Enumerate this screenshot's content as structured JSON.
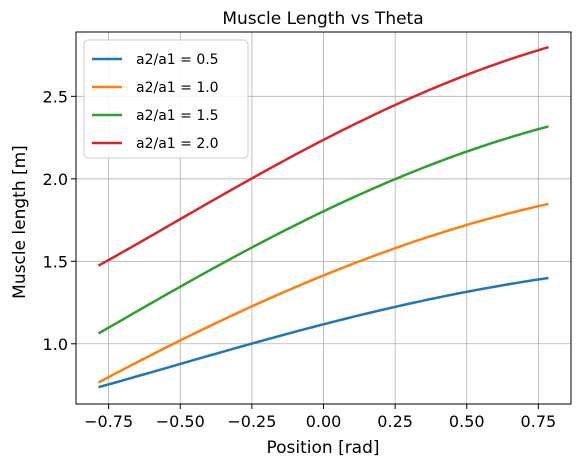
{
  "chart_data": {
    "type": "line",
    "title": "Muscle Length vs Theta",
    "xlabel": "Position [rad]",
    "ylabel": "Muscle length [m]",
    "xlim": [
      -0.8639,
      0.8639
    ],
    "ylim": [
      0.635,
      2.89
    ],
    "xticks": [
      -0.75,
      -0.5,
      -0.25,
      0.0,
      0.25,
      0.5,
      0.75
    ],
    "xtick_labels": [
      "−0.75",
      "−0.50",
      "−0.25",
      "0.00",
      "0.25",
      "0.50",
      "0.75"
    ],
    "yticks": [
      1.0,
      1.5,
      2.0,
      2.5
    ],
    "ytick_labels": [
      "1.0",
      "1.5",
      "2.0",
      "2.5"
    ],
    "grid": true,
    "legend_position": "top-left",
    "series": [
      {
        "name": "a2/a1 = 0.5",
        "color": "#1f77b4",
        "a": 0.5
      },
      {
        "name": "a2/a1 = 1.0",
        "color": "#ff7f0e",
        "a": 1.0
      },
      {
        "name": "a2/a1 = 1.5",
        "color": "#2ca02c",
        "a": 1.5
      },
      {
        "name": "a2/a1 = 2.0",
        "color": "#d62728",
        "a": 2.0
      }
    ],
    "x_range": [
      -0.7854,
      0.7854
    ]
  }
}
